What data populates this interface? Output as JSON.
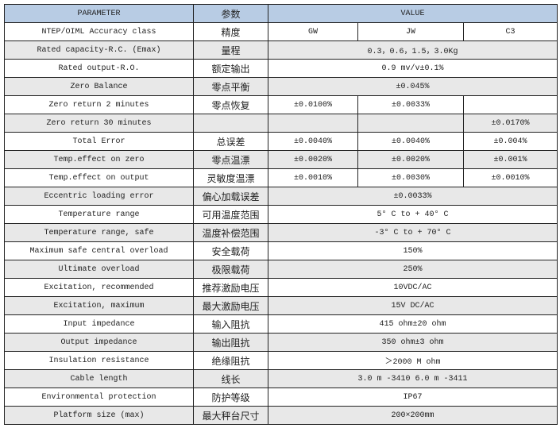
{
  "header": {
    "parameter": "PARAMETER",
    "cn": "参数",
    "value": "VALUE"
  },
  "colors": {
    "header_bg": "#b8cce4",
    "stripe_bg": "#e8e8e8"
  },
  "rows": [
    {
      "param": "NTEP/OIML Accuracy class",
      "cn": "精度",
      "values": [
        "GW",
        "JW",
        "C3"
      ]
    },
    {
      "param": "Rated capacity-R.C. (Emax)",
      "cn": "量程",
      "values": [
        "0.3，0.6，1.5，3.0Kg"
      ]
    },
    {
      "param": "Rated output-R.O.",
      "cn": "额定输出",
      "values": [
        "0.9 mv/v±0.1%"
      ]
    },
    {
      "param": "Zero Balance",
      "cn": "零点平衡",
      "values": [
        "±0.045%"
      ]
    },
    {
      "param": "Zero return 2 minutes",
      "cn": "零点恢复",
      "values": [
        "±0.0100%",
        "±0.0033%",
        ""
      ]
    },
    {
      "param": "Zero return 30 minutes",
      "cn": "",
      "values": [
        "",
        "",
        "±0.0170%"
      ]
    },
    {
      "param": "Total Error",
      "cn": "总误差",
      "values": [
        "±0.0040%",
        "±0.0040%",
        "±0.004%"
      ]
    },
    {
      "param": "Temp.effect on zero",
      "cn": "零点温漂",
      "values": [
        "±0.0020%",
        "±0.0020%",
        "±0.001%"
      ]
    },
    {
      "param": "Temp.effect on output",
      "cn": "灵敏度温漂",
      "values": [
        "±0.0010%",
        "±0.0030%",
        "±0.0010%"
      ]
    },
    {
      "param": "Eccentric loading error",
      "cn": "偏心加载误差",
      "values": [
        "±0.0033%"
      ]
    },
    {
      "param": "Temperature range",
      "cn": "可用温度范围",
      "values": [
        "5° C to + 40° C"
      ]
    },
    {
      "param": "Temperature range, safe",
      "cn": "温度补偿范围",
      "values": [
        "-3° C to + 70° C"
      ]
    },
    {
      "param": "Maximum safe central overload",
      "cn": "安全载荷",
      "values": [
        "150%"
      ]
    },
    {
      "param": "Ultimate overload",
      "cn": "极限载荷",
      "values": [
        "250%"
      ]
    },
    {
      "param": "Excitation, recommended",
      "cn": "推荐激励电压",
      "values": [
        "10VDC/AC"
      ]
    },
    {
      "param": "Excitation, maximum",
      "cn": "最大激励电压",
      "values": [
        "15V DC/AC"
      ]
    },
    {
      "param": "Input impedance",
      "cn": "输入阻抗",
      "values": [
        "415 ohm±20 ohm"
      ]
    },
    {
      "param": "Output impedance",
      "cn": "输出阻抗",
      "values": [
        "350 ohm±3 ohm"
      ]
    },
    {
      "param": "Insulation resistance",
      "cn": "绝缘阻抗",
      "values": [
        "＞2000 M ohm"
      ]
    },
    {
      "param": "Cable length",
      "cn": "线长",
      "values": [
        "3.0 m -3410  6.0 m -3411"
      ]
    },
    {
      "param": "Environmental protection",
      "cn": "防护等级",
      "values": [
        "IP67"
      ]
    },
    {
      "param": "Platform size (max)",
      "cn": "最大秤台尺寸",
      "values": [
        "200×200mm"
      ]
    }
  ]
}
